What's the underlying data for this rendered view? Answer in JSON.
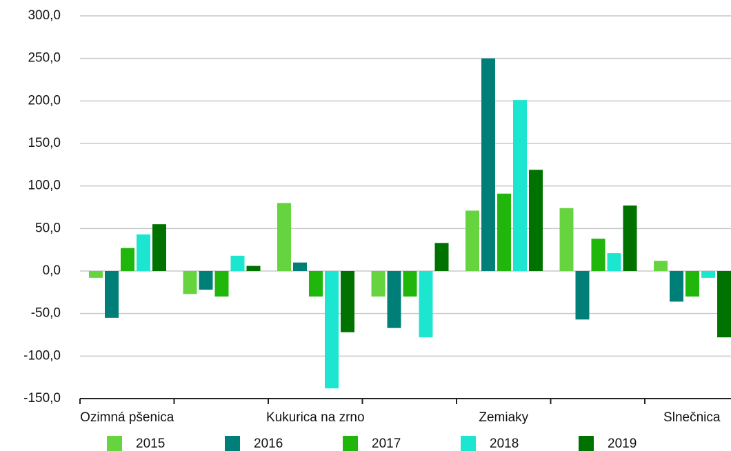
{
  "chart_data": {
    "type": "bar",
    "categories": [
      "Ozimná pšenica",
      null,
      "Kukurica na zrno",
      null,
      "Zemiaky",
      null,
      "Slnečnica"
    ],
    "series": [
      {
        "name": "2015",
        "color": "#66d43f",
        "values": [
          -8,
          -27,
          80,
          -30,
          71,
          74,
          12
        ]
      },
      {
        "name": "2016",
        "color": "#007f78",
        "values": [
          -55,
          -22,
          10,
          -67,
          250,
          -57,
          -36
        ]
      },
      {
        "name": "2017",
        "color": "#21b60b",
        "values": [
          27,
          -30,
          -30,
          -30,
          91,
          38,
          -30
        ]
      },
      {
        "name": "2018",
        "color": "#1de6d0",
        "values": [
          43,
          18,
          -138,
          -78,
          201,
          21,
          -8
        ]
      },
      {
        "name": "2019",
        "color": "#007200",
        "values": [
          55,
          6,
          -72,
          33,
          119,
          77,
          -78
        ]
      }
    ],
    "ylim": [
      -150,
      300
    ],
    "yticks": [
      {
        "value": -150,
        "label": "-150,0"
      },
      {
        "value": -100,
        "label": "-100,0"
      },
      {
        "value": -50,
        "label": "-50,0"
      },
      {
        "value": 0,
        "label": "0,0"
      },
      {
        "value": 50,
        "label": "50,0"
      },
      {
        "value": 100,
        "label": "100,0"
      },
      {
        "value": 150,
        "label": "150,0"
      },
      {
        "value": 200,
        "label": "200,0"
      },
      {
        "value": 250,
        "label": "250,0"
      },
      {
        "value": 300,
        "label": "300,0"
      }
    ],
    "grid": true,
    "legend": "bottom"
  }
}
